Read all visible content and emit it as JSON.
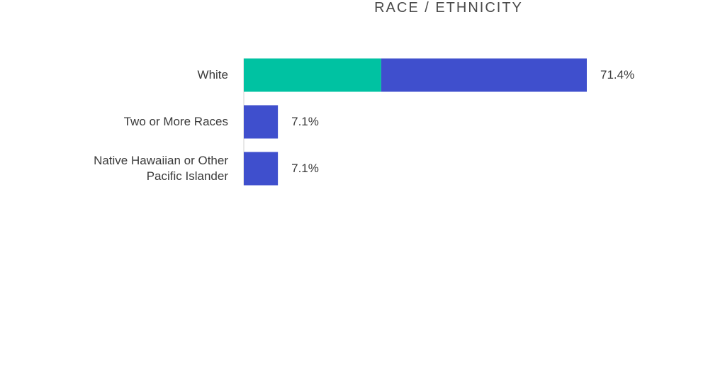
{
  "chart_data": {
    "type": "stacked-bar-horizontal",
    "title": "RACE / ETHNICITY",
    "categories": [
      "White",
      "Two or More Races",
      "Native Hawaiian or Other Pacific Islander"
    ],
    "series": [
      {
        "color": "#00c2a2",
        "values": [
          28.6,
          null,
          null
        ]
      },
      {
        "color": "#3f4fcd",
        "values": [
          42.8,
          7.1,
          7.1
        ]
      }
    ],
    "totals": [
      71.4,
      7.1,
      7.1
    ],
    "value_labels": [
      "71.4%",
      "7.1%",
      "7.1%"
    ]
  }
}
